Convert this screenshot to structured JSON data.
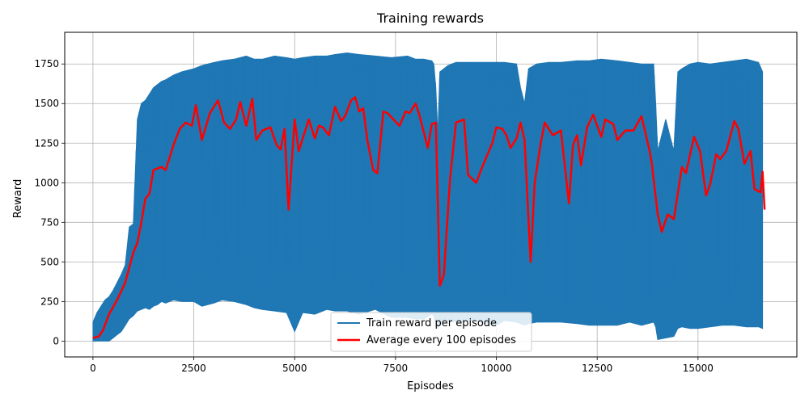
{
  "chart_data": {
    "type": "line",
    "title": "Training rewards",
    "xlabel": "Episodes",
    "ylabel": "Reward",
    "xlim": [
      -700,
      17450
    ],
    "ylim": [
      -100,
      1950
    ],
    "xticks": [
      0,
      2500,
      5000,
      7500,
      10000,
      12500,
      15000
    ],
    "xtick_labels": [
      "0",
      "2500",
      "5000",
      "7500",
      "10000",
      "12500",
      "15000"
    ],
    "yticks": [
      0,
      250,
      500,
      750,
      1000,
      1250,
      1500,
      1750
    ],
    "ytick_labels": [
      "0",
      "250",
      "500",
      "750",
      "1000",
      "1250",
      "1500",
      "1750"
    ],
    "grid": true,
    "legend_position": "lower-center",
    "colors": {
      "train": "#1f77b4",
      "average": "#ff0000",
      "grid": "#b0b0b0"
    },
    "series": [
      {
        "name": "Train reward per episode",
        "kind": "band",
        "x": [
          0,
          100,
          200,
          300,
          400,
          500,
          600,
          700,
          800,
          900,
          1000,
          1100,
          1200,
          1300,
          1400,
          1500,
          1600,
          1700,
          1800,
          2000,
          2200,
          2500,
          2700,
          3000,
          3200,
          3500,
          3800,
          4000,
          4200,
          4500,
          4800,
          5000,
          5200,
          5500,
          5800,
          6000,
          6300,
          6600,
          7000,
          7400,
          7800,
          8000,
          8200,
          8400,
          8450,
          8500,
          8550,
          8600,
          8700,
          8800,
          9000,
          9300,
          9600,
          10000,
          10200,
          10500,
          10600,
          10700,
          10800,
          11000,
          11300,
          11600,
          12000,
          12300,
          12600,
          13000,
          13300,
          13600,
          13900,
          13950,
          14000,
          14200,
          14400,
          14500,
          14600,
          14800,
          15000,
          15300,
          15600,
          15900,
          16200,
          16500,
          16600
        ],
        "high": [
          120,
          180,
          220,
          260,
          280,
          320,
          370,
          420,
          480,
          720,
          740,
          1400,
          1500,
          1520,
          1560,
          1600,
          1620,
          1640,
          1650,
          1680,
          1700,
          1720,
          1740,
          1760,
          1770,
          1780,
          1800,
          1780,
          1780,
          1800,
          1790,
          1780,
          1790,
          1800,
          1800,
          1810,
          1820,
          1810,
          1800,
          1790,
          1800,
          1780,
          1780,
          1770,
          1750,
          1600,
          1300,
          1700,
          1720,
          1740,
          1760,
          1760,
          1760,
          1760,
          1760,
          1750,
          1600,
          1500,
          1720,
          1750,
          1760,
          1760,
          1770,
          1770,
          1780,
          1770,
          1760,
          1750,
          1750,
          1500,
          1200,
          1400,
          1200,
          1700,
          1720,
          1750,
          1760,
          1750,
          1760,
          1770,
          1780,
          1760,
          1700
        ],
        "low": [
          0,
          0,
          0,
          0,
          0,
          20,
          40,
          60,
          100,
          140,
          160,
          190,
          200,
          210,
          200,
          220,
          230,
          250,
          240,
          260,
          250,
          250,
          220,
          240,
          260,
          250,
          230,
          210,
          200,
          190,
          180,
          60,
          180,
          170,
          200,
          190,
          190,
          170,
          200,
          150,
          150,
          140,
          140,
          170,
          160,
          100,
          80,
          120,
          120,
          130,
          120,
          130,
          120,
          100,
          130,
          120,
          110,
          100,
          110,
          120,
          120,
          120,
          110,
          100,
          100,
          100,
          120,
          100,
          120,
          90,
          10,
          20,
          30,
          80,
          90,
          80,
          80,
          90,
          100,
          100,
          90,
          90,
          80
        ]
      },
      {
        "name": "Average every 100 episodes",
        "kind": "line",
        "x": [
          0,
          150,
          250,
          400,
          600,
          800,
          1000,
          1100,
          1200,
          1300,
          1400,
          1500,
          1700,
          1800,
          2000,
          2150,
          2300,
          2450,
          2550,
          2700,
          2900,
          3100,
          3250,
          3400,
          3550,
          3650,
          3800,
          3950,
          4050,
          4200,
          4400,
          4550,
          4650,
          4750,
          4850,
          5000,
          5100,
          5350,
          5500,
          5600,
          5700,
          5850,
          6000,
          6150,
          6250,
          6400,
          6500,
          6600,
          6700,
          6800,
          6950,
          7050,
          7200,
          7300,
          7450,
          7600,
          7750,
          7850,
          8000,
          8100,
          8300,
          8400,
          8500,
          8600,
          8700,
          8850,
          9000,
          9200,
          9300,
          9500,
          9650,
          9900,
          10000,
          10150,
          10250,
          10350,
          10500,
          10600,
          10700,
          10850,
          10950,
          11100,
          11200,
          11400,
          11600,
          11800,
          11900,
          12000,
          12100,
          12250,
          12400,
          12600,
          12700,
          12900,
          13000,
          13200,
          13400,
          13600,
          13800,
          13850,
          14000,
          14100,
          14250,
          14400,
          14600,
          14700,
          14900,
          15050,
          15200,
          15300,
          15450,
          15550,
          15700,
          15900,
          16000,
          16150,
          16300,
          16400,
          16550,
          16600,
          16650
        ],
        "y": [
          20,
          30,
          70,
          170,
          260,
          370,
          560,
          620,
          750,
          900,
          930,
          1080,
          1100,
          1080,
          1240,
          1340,
          1380,
          1360,
          1490,
          1270,
          1440,
          1520,
          1380,
          1340,
          1400,
          1510,
          1360,
          1530,
          1270,
          1330,
          1350,
          1240,
          1210,
          1340,
          830,
          1400,
          1200,
          1400,
          1280,
          1360,
          1350,
          1300,
          1480,
          1390,
          1420,
          1520,
          1540,
          1450,
          1470,
          1270,
          1080,
          1060,
          1450,
          1440,
          1400,
          1360,
          1450,
          1440,
          1500,
          1420,
          1220,
          1370,
          1380,
          350,
          420,
          1020,
          1380,
          1400,
          1050,
          1000,
          1100,
          1250,
          1350,
          1340,
          1300,
          1220,
          1280,
          1380,
          1270,
          500,
          1000,
          1250,
          1380,
          1300,
          1330,
          870,
          1240,
          1300,
          1110,
          1350,
          1430,
          1290,
          1400,
          1370,
          1270,
          1330,
          1330,
          1420,
          1200,
          1130,
          800,
          690,
          800,
          770,
          1100,
          1060,
          1290,
          1200,
          920,
          990,
          1180,
          1150,
          1200,
          1390,
          1340,
          1120,
          1200,
          960,
          940,
          1070,
          830
        ]
      }
    ]
  }
}
